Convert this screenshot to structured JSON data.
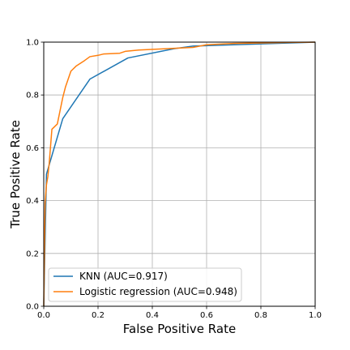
{
  "chart_data": {
    "type": "line",
    "title": "",
    "xlabel": "False Positive Rate",
    "ylabel": "True Positive Rate",
    "xlim": [
      0,
      1
    ],
    "ylim": [
      0,
      1
    ],
    "xticks": [
      "0.0",
      "0.2",
      "0.4",
      "0.6",
      "0.8",
      "1.0"
    ],
    "yticks": [
      "0.0",
      "0.2",
      "0.4",
      "0.6",
      "0.8",
      "1.0"
    ],
    "grid": true,
    "legend_position": "bottom-left",
    "series": [
      {
        "name": "KNN (AUC=0.917)",
        "color": "#1f77b4",
        "x": [
          0,
          0.01,
          0.07,
          0.17,
          0.31,
          0.48,
          0.55,
          1.0
        ],
        "y": [
          0,
          0.5,
          0.71,
          0.86,
          0.94,
          0.975,
          0.985,
          1.0
        ]
      },
      {
        "name": "Logistic regression (AUC=0.948)",
        "color": "#ff7f0e",
        "x": [
          0,
          0.005,
          0.01,
          0.015,
          0.02,
          0.03,
          0.05,
          0.06,
          0.07,
          0.08,
          0.09,
          0.1,
          0.12,
          0.15,
          0.17,
          0.2,
          0.22,
          0.28,
          0.3,
          0.35,
          0.45,
          0.55,
          0.6,
          0.7,
          0.8,
          0.9,
          1.0
        ],
        "y": [
          0,
          0.39,
          0.46,
          0.49,
          0.54,
          0.67,
          0.69,
          0.74,
          0.79,
          0.83,
          0.86,
          0.89,
          0.91,
          0.93,
          0.945,
          0.95,
          0.955,
          0.958,
          0.965,
          0.97,
          0.975,
          0.98,
          0.99,
          0.995,
          0.997,
          0.999,
          1.0
        ]
      }
    ]
  }
}
